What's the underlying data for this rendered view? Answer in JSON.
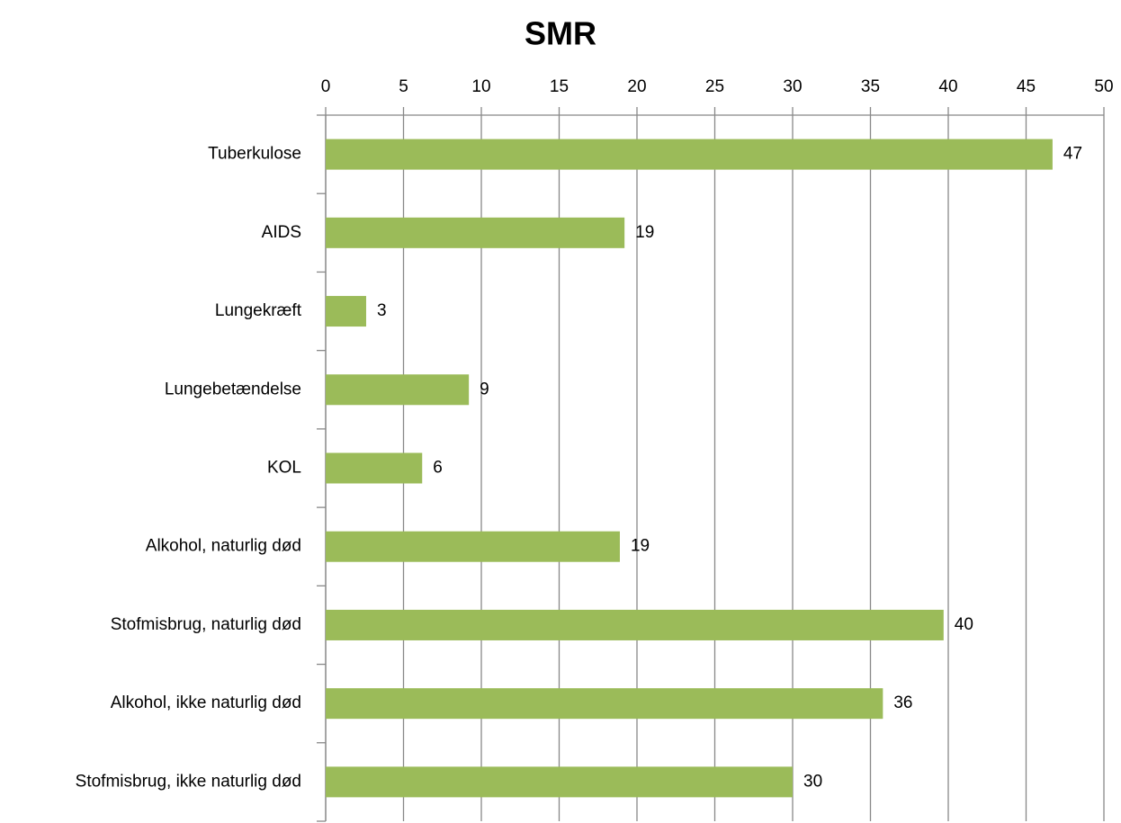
{
  "chart_data": {
    "type": "bar",
    "orientation": "horizontal",
    "title": "SMR",
    "categories": [
      "Tuberkulose",
      "AIDS",
      "Lungekræft",
      "Lungebetændelse",
      "KOL",
      "Alkohol, naturlig død",
      "Stofmisbrug, naturlig død",
      "Alkohol, ikke naturlig død",
      "Stofmisbrug, ikke naturlig død"
    ],
    "values": [
      46.7,
      19.2,
      2.6,
      9.2,
      6.2,
      18.9,
      39.7,
      35.8,
      30.0
    ],
    "value_labels": [
      "47",
      "19",
      "3",
      "9",
      "6",
      "19",
      "40",
      "36",
      "30"
    ],
    "color": "#9bbb59",
    "xlim": [
      0,
      50
    ],
    "xticks": [
      0,
      5,
      10,
      15,
      20,
      25,
      30,
      35,
      40,
      45,
      50
    ],
    "grid": true
  }
}
